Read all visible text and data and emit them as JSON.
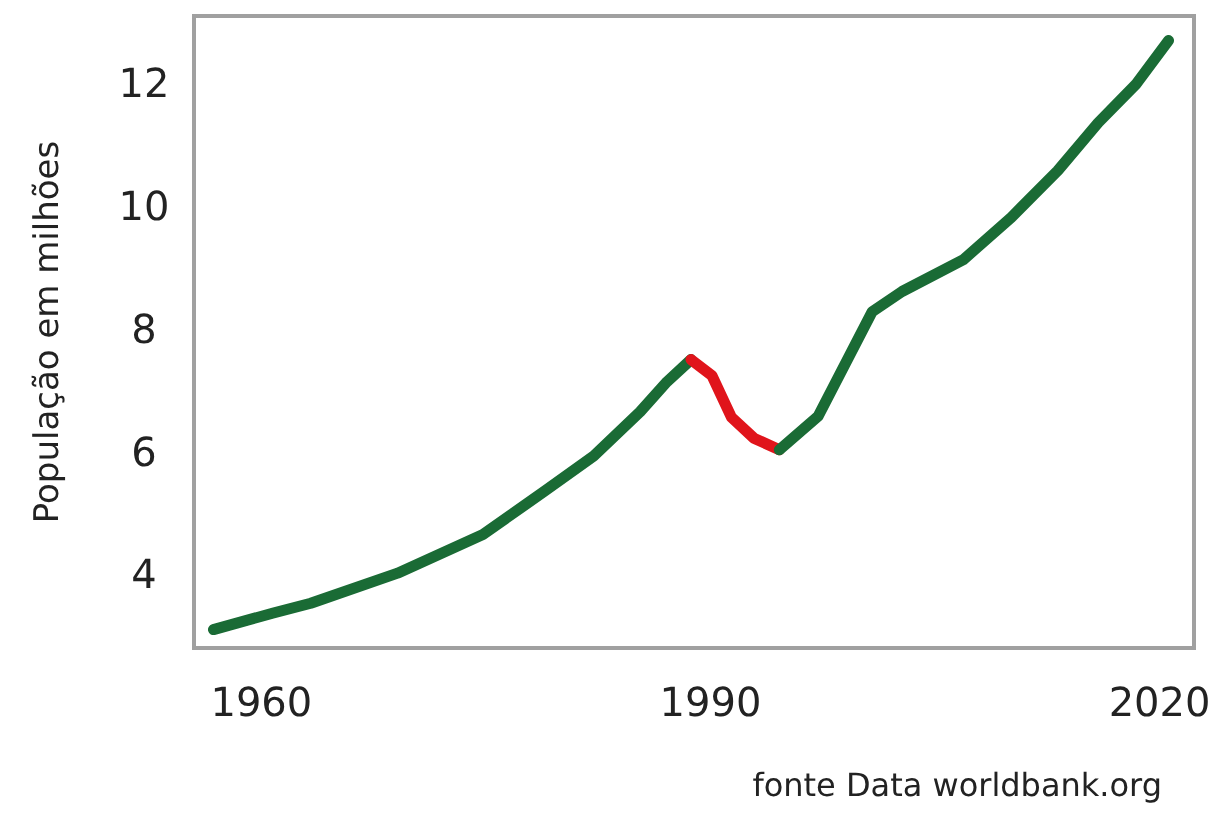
{
  "chart_data": {
    "type": "line",
    "ylabel": "População em milhões",
    "annotations": [
      "fonte Data worldbank.org"
    ],
    "xlim": [
      1955.5,
      2022.3
    ],
    "xticks": [
      1960,
      1990,
      2020
    ],
    "ylim": [
      2.8,
      13.1
    ],
    "yticks": [
      4,
      6,
      8,
      10,
      12
    ],
    "grid": false,
    "marker": "none",
    "line_style": "solid",
    "series": [
      {
        "color": "#1a6b35",
        "x": [
          1956.8,
          1960.8,
          1963.3,
          1969.1,
          1974.8,
          1979.0,
          1982.2,
          1985.3,
          1987.1,
          1988.7
        ],
        "values": [
          3.1,
          3.37,
          3.53,
          4.02,
          4.65,
          5.37,
          5.93,
          6.65,
          7.14,
          7.5
        ]
      },
      {
        "color": "#e0141b",
        "x": [
          1988.7,
          1990.1,
          1991.4,
          1992.9,
          1994.6
        ],
        "values": [
          7.5,
          7.24,
          6.56,
          6.22,
          6.03
        ]
      },
      {
        "color": "#1a6b35",
        "x": [
          1994.6,
          1997.2,
          2000.8,
          2002.8,
          2006.9,
          2010.1,
          2013.2,
          2015.9,
          2018.4,
          2020.6
        ],
        "values": [
          6.03,
          6.58,
          8.28,
          8.61,
          9.13,
          9.82,
          10.58,
          11.36,
          11.98,
          12.7
        ]
      }
    ]
  }
}
